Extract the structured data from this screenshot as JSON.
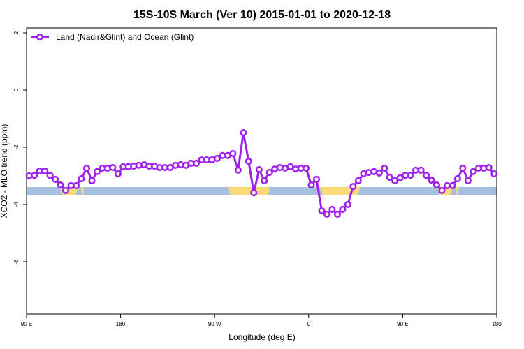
{
  "chart_data": {
    "type": "line",
    "title": "15S-10S March (Ver 10)   2015-01-01 to 2020-12-18",
    "x_label": "Longitude (deg E)",
    "y_label": "XCO2 - MLO trend (ppm)",
    "xlim": [
      90,
      540
    ],
    "xticks": [
      {
        "value": 90,
        "label": "90 E"
      },
      {
        "value": 180,
        "label": "180"
      },
      {
        "value": 270,
        "label": "90 W"
      },
      {
        "value": 360,
        "label": "0"
      },
      {
        "value": 450,
        "label": "90 E"
      },
      {
        "value": 540,
        "label": "180"
      }
    ],
    "ylim": [
      -7.83,
      2.17
    ],
    "yticks": [
      2,
      0,
      -2,
      -4,
      -6
    ],
    "legend": "top-left",
    "x": [
      92.5,
      97.5,
      102.5,
      107.5,
      112.5,
      117.5,
      122.5,
      127.5,
      132.5,
      137.5,
      142.5,
      147.5,
      152.5,
      157.5,
      162.5,
      167.5,
      172.5,
      177.5,
      182.5,
      187.5,
      192.5,
      197.5,
      202.5,
      207.5,
      212.5,
      217.5,
      222.5,
      227.5,
      232.5,
      237.5,
      242.5,
      247.5,
      252.5,
      257.5,
      262.5,
      267.5,
      272.5,
      277.5,
      282.5,
      287.5,
      292.5,
      297.5,
      302.5,
      307.5,
      312.5,
      317.5,
      322.5,
      327.5,
      332.5,
      337.5,
      342.5,
      347.5,
      352.5,
      357.5,
      362.5,
      367.5,
      372.5,
      377.5,
      382.5,
      387.5,
      392.5,
      397.5,
      402.5,
      407.5,
      412.5,
      417.5,
      422.5,
      427.5,
      432.5,
      437.5,
      442.5,
      447.5,
      452.5,
      457.5,
      462.5,
      467.5,
      472.5,
      477.5,
      482.5,
      487.5,
      492.5,
      497.5,
      502.5,
      507.5,
      512.5,
      517.5,
      522.5,
      527.5,
      532.5,
      537.5
    ],
    "series": [
      {
        "name": "Land (Nadir&Glint) and Ocean (Glint)",
        "color": "#a020f0",
        "values": [
          -3.0,
          -2.98,
          -2.83,
          -2.83,
          -2.98,
          -3.12,
          -3.32,
          -3.51,
          -3.34,
          -3.34,
          -3.1,
          -2.73,
          -3.17,
          -2.85,
          -2.73,
          -2.73,
          -2.71,
          -2.93,
          -2.68,
          -2.68,
          -2.66,
          -2.63,
          -2.61,
          -2.66,
          -2.66,
          -2.71,
          -2.71,
          -2.71,
          -2.63,
          -2.61,
          -2.63,
          -2.56,
          -2.56,
          -2.44,
          -2.44,
          -2.44,
          -2.39,
          -2.29,
          -2.29,
          -2.22,
          -2.8,
          -1.49,
          -2.49,
          -3.59,
          -2.78,
          -3.17,
          -2.88,
          -2.76,
          -2.71,
          -2.73,
          -2.68,
          -2.76,
          -2.73,
          -2.73,
          -3.32,
          -3.12,
          -4.22,
          -4.34,
          -4.17,
          -4.34,
          -4.17,
          -4.0,
          -3.37,
          -3.17,
          -2.93,
          -2.88,
          -2.85,
          -2.9,
          -2.73,
          -3.05,
          -3.17,
          -3.07,
          -2.98,
          -2.98,
          -2.8,
          -2.8,
          -2.98,
          -3.15,
          -3.32,
          -3.51,
          -3.34,
          -3.34,
          -3.1,
          -2.73,
          -3.17,
          -2.85,
          -2.73,
          -2.73,
          -2.71,
          -2.93
        ]
      }
    ]
  }
}
